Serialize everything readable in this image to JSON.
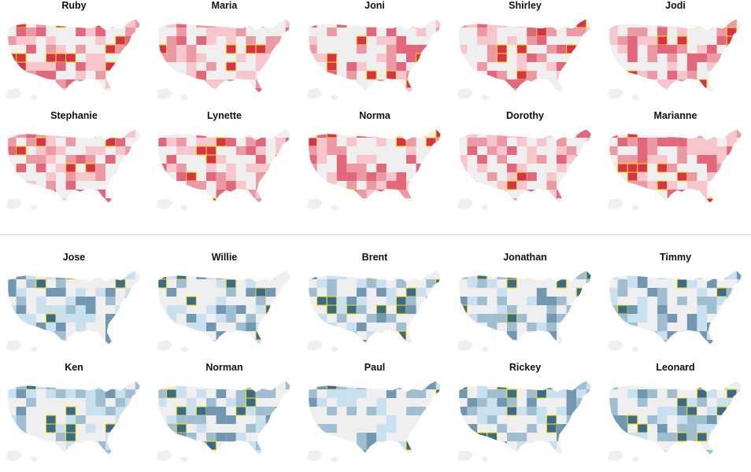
{
  "chart_data": {
    "type": "choropleth",
    "colors": {
      "base": "#efefef",
      "highlight": "#ffe600",
      "female": [
        "#f6c6cc",
        "#eb9aa4",
        "#e2677a",
        "#d5324e"
      ],
      "male": [
        "#c9e0ef",
        "#9fbfd1",
        "#7198b0",
        "#3b6b8a"
      ]
    },
    "sections": [
      {
        "gender": "female",
        "names": [
          "Ruby",
          "Maria",
          "Joni",
          "Shirley",
          "Jodi",
          "Stephanie",
          "Lynette",
          "Norma",
          "Dorothy",
          "Marianne"
        ]
      },
      {
        "gender": "male",
        "names": [
          "Jose",
          "Willie",
          "Brent",
          "Jonathan",
          "Timmy",
          "Ken",
          "Norman",
          "Paul",
          "Rickey",
          "Leonard"
        ]
      }
    ]
  }
}
